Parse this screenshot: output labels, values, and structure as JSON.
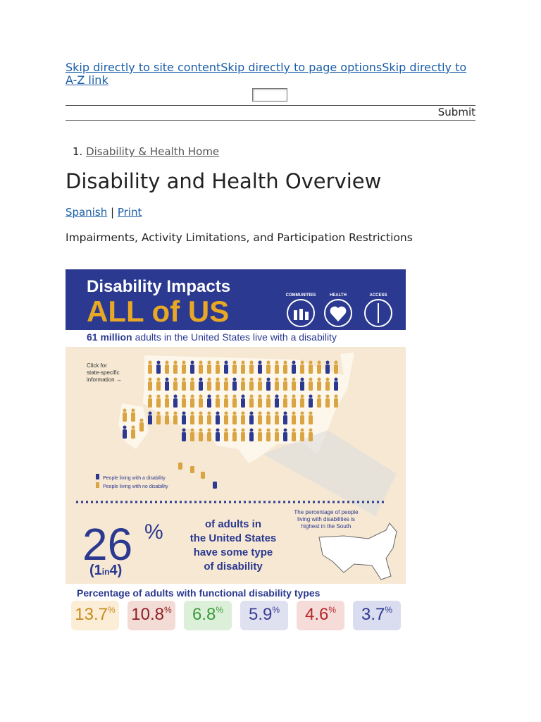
{
  "skip_links": {
    "site_content": "Skip directly to site content",
    "page_options": "Skip directly to page options",
    "az_link": "Skip directly to A-Z link"
  },
  "search": {
    "submit": "Submit"
  },
  "breadcrumb": {
    "items": [
      "Disability & Health Home"
    ]
  },
  "heading": "Disability and Health Overview",
  "page_options": {
    "spanish": "Spanish",
    "separator": "|",
    "print": "Print"
  },
  "subheading": "Impairments, Activity Limitations, and Participation Restrictions",
  "infographic": {
    "title_line1": "Disability Impacts",
    "title_line2": "ALL of US",
    "icons": [
      "COMMUNITIES",
      "HEALTH",
      "ACCESS"
    ],
    "intro_bold": "61 million",
    "intro_rest": "adults in the United States live with a disability",
    "click_note": [
      "Click for",
      "state-specific",
      "information →"
    ],
    "legend": [
      "People living with a disability",
      "People living with no disability"
    ],
    "south_note": [
      "The percentage of people",
      "living with disabilities is",
      "highest in the South"
    ],
    "big_number": "26",
    "big_unit": "%",
    "ratio": [
      "(1",
      "in",
      "4)"
    ],
    "big_caption": [
      "of adults in",
      "the United States",
      "have some type",
      "of disability"
    ],
    "types_title": "Percentage of adults with functional disability types",
    "types": [
      {
        "value": "13.7",
        "unit": "%",
        "color": "#c98a1e",
        "bg": "#fbedd6"
      },
      {
        "value": "10.8",
        "unit": "%",
        "color": "#8e1f24",
        "bg": "#f4dcd6"
      },
      {
        "value": "6.8",
        "unit": "%",
        "color": "#3a9a3c",
        "bg": "#dcefd8"
      },
      {
        "value": "5.9",
        "unit": "%",
        "color": "#3b3f95",
        "bg": "#dfe0f0"
      },
      {
        "value": "4.6",
        "unit": "%",
        "color": "#b3282d",
        "bg": "#f6dcd8"
      },
      {
        "value": "3.7",
        "unit": "%",
        "color": "#2b3990",
        "bg": "#dadcef"
      }
    ]
  }
}
